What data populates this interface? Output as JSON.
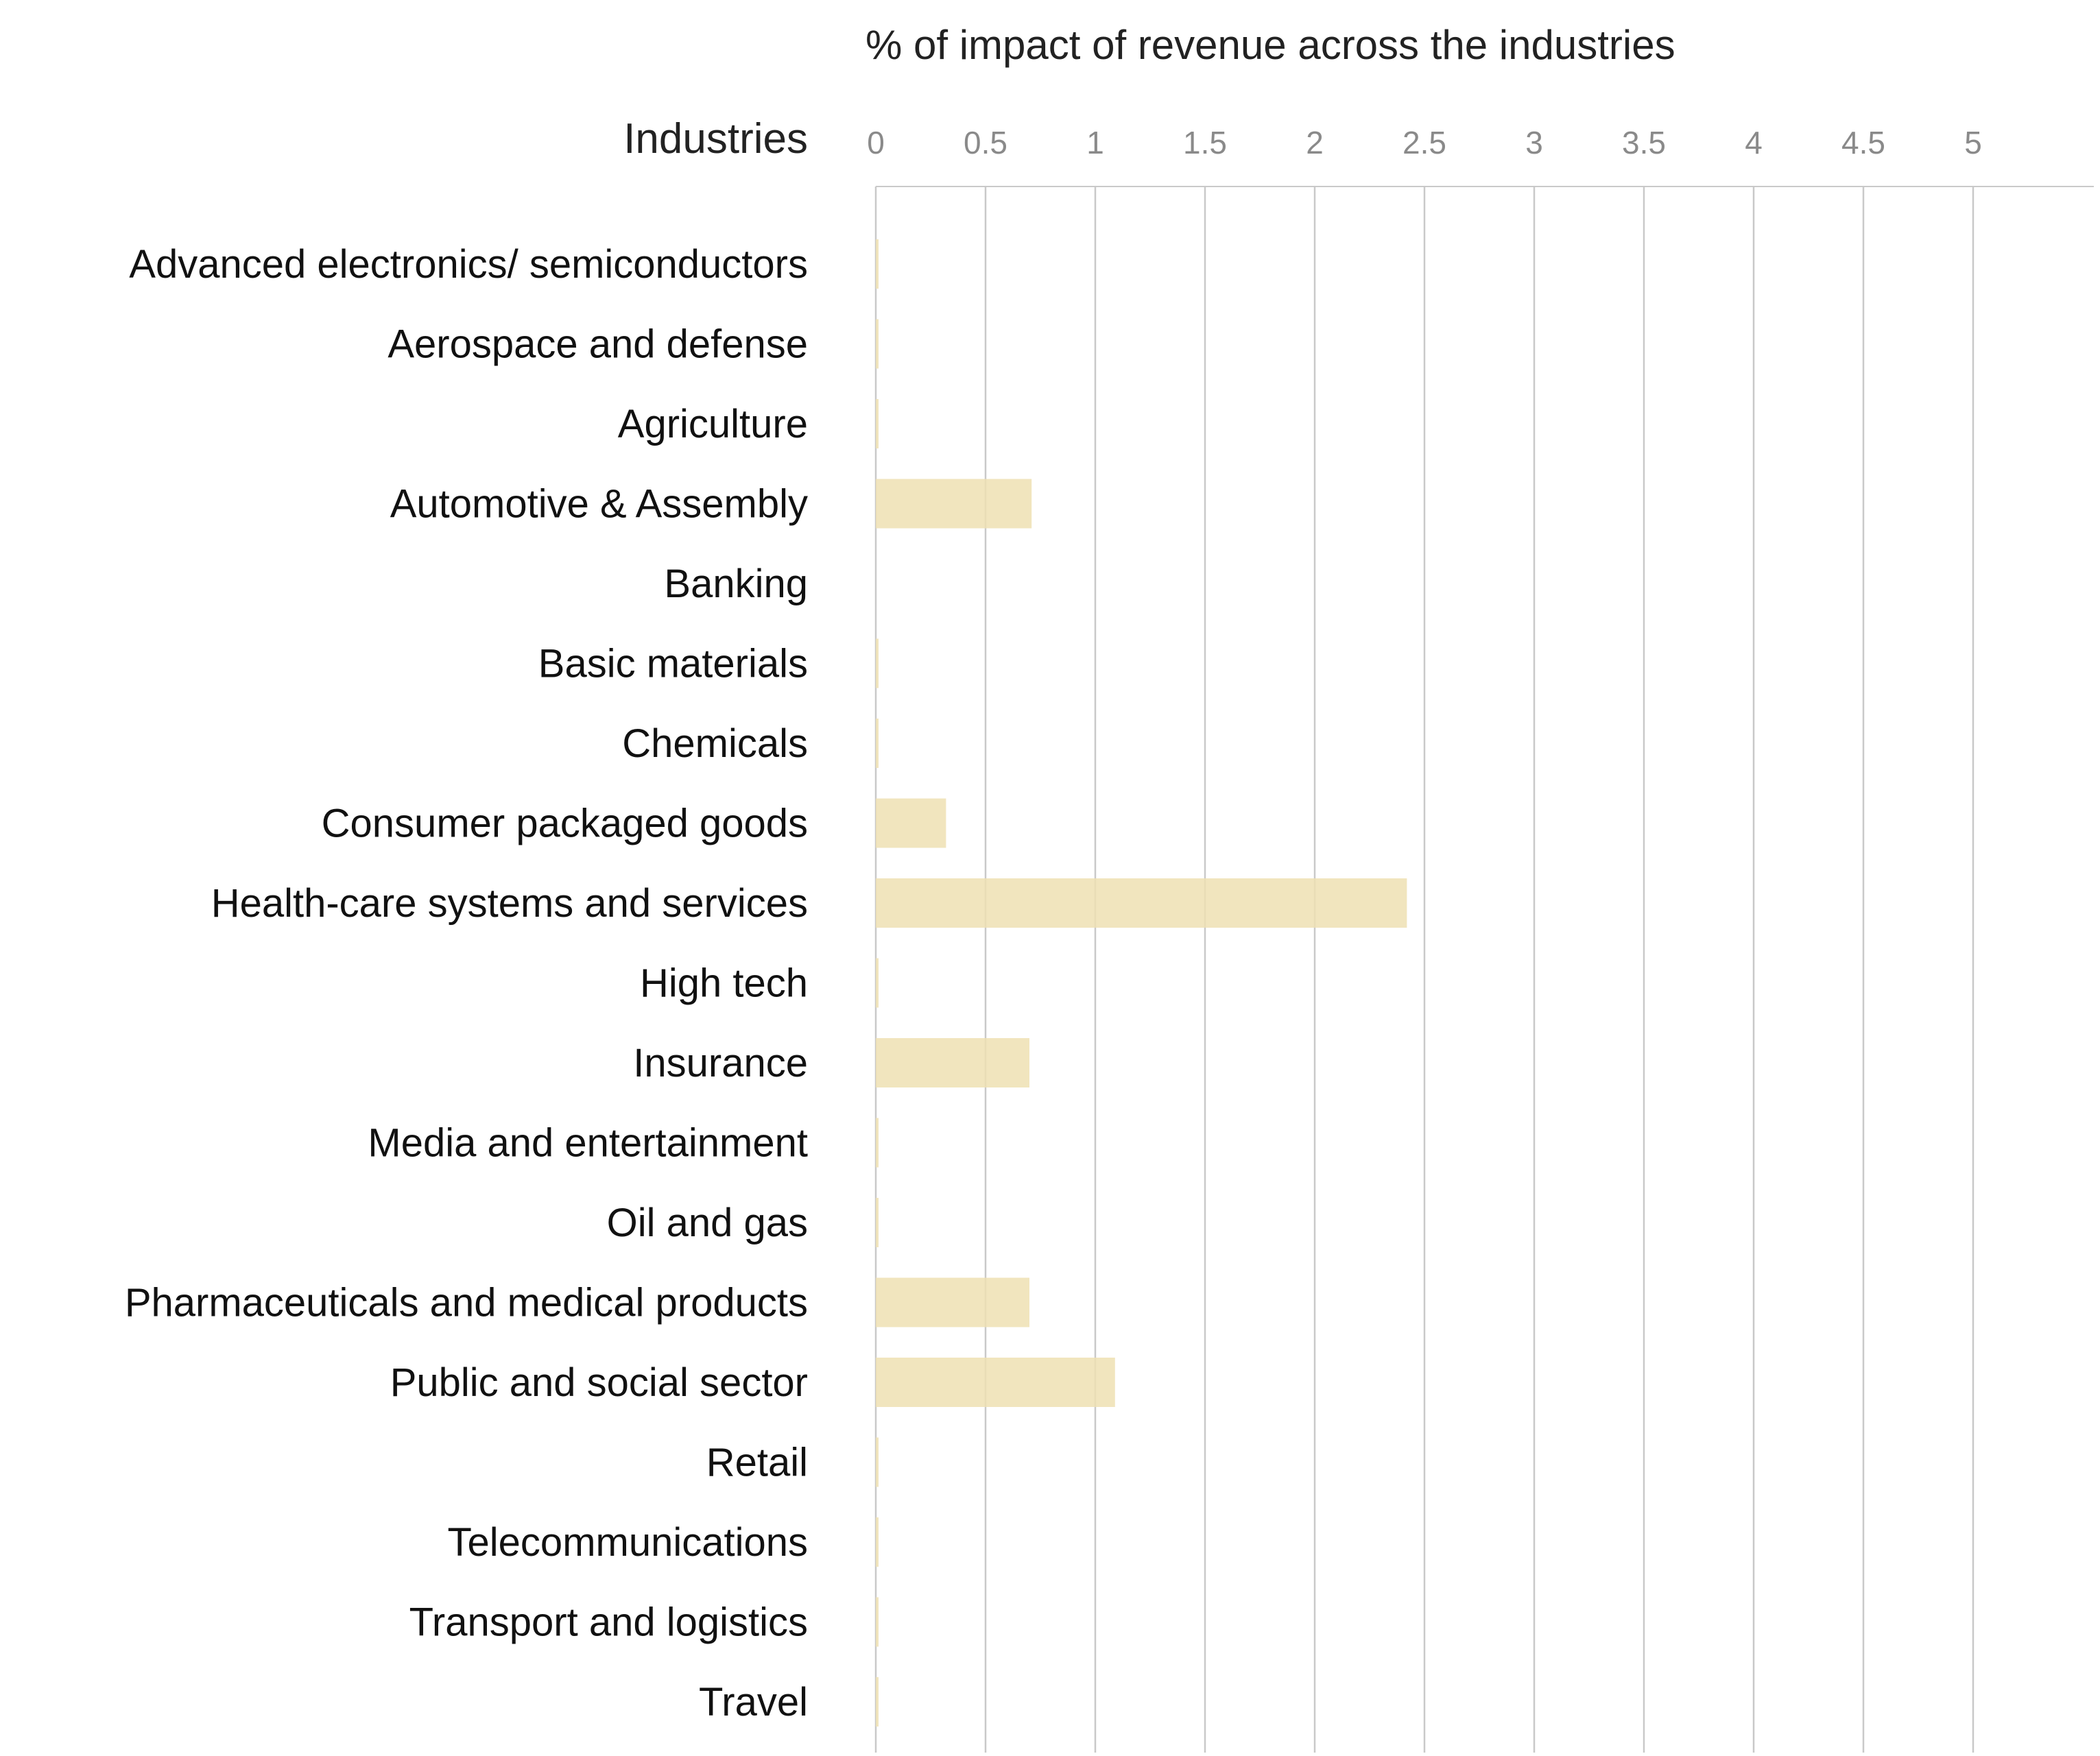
{
  "chart_data": {
    "type": "bar",
    "orientation": "horizontal",
    "title": "% of impact of revenue across the industries",
    "category_header": "Industries",
    "xlabel": "",
    "ylabel": "",
    "xlim": [
      0,
      5.3
    ],
    "x_ticks": [
      "0",
      "0.5",
      "1",
      "1.5",
      "2",
      "2.5",
      "3",
      "3.5",
      "4",
      "4.5",
      "5"
    ],
    "grid": "vertical",
    "bar_color": "#EFE0B3",
    "categories": [
      "Advanced electronics/ semiconductors",
      "Aerospace and defense",
      "Agriculture",
      "Automotive & Assembly",
      "Banking",
      "Basic materials",
      "Chemicals",
      "Consumer packaged goods",
      "Health-care systems and services",
      "High tech",
      "Insurance",
      "Media and entertainment",
      "Oil and gas",
      "Pharmaceuticals and medical products",
      "Public and social sector",
      "Retail",
      "Telecommunications",
      "Transport and logistics",
      "Travel"
    ],
    "values": [
      0.01,
      0.01,
      0.01,
      0.71,
      0,
      0.01,
      0.01,
      0.32,
      2.42,
      0.01,
      0.7,
      0.01,
      0.01,
      0.7,
      1.09,
      0.01,
      0.01,
      0.01,
      0.01
    ]
  }
}
